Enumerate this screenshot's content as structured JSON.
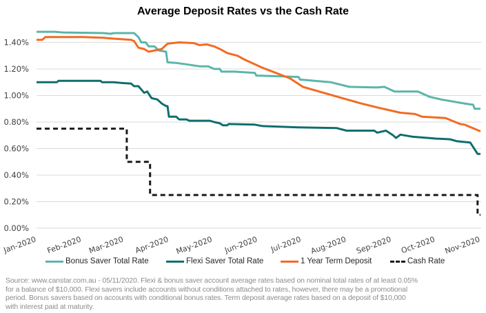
{
  "chart_data": {
    "type": "line",
    "title": "Average Deposit Rates vs the Cash Rate",
    "xlabel": "",
    "ylabel": "",
    "xlim": [
      "2020-01-01",
      "2020-11-01"
    ],
    "ylim": [
      0,
      1.5
    ],
    "y_ticks": [
      0,
      0.2,
      0.4,
      0.6,
      0.8,
      1.0,
      1.2,
      1.4
    ],
    "y_tick_labels": [
      "0.00%",
      "0.20%",
      "0.40%",
      "0.60%",
      "0.80%",
      "1.00%",
      "1.20%",
      "1.40%"
    ],
    "x_tick_dates": [
      "2020-01-01",
      "2020-02-01",
      "2020-03-01",
      "2020-04-01",
      "2020-05-01",
      "2020-06-01",
      "2020-07-01",
      "2020-08-01",
      "2020-09-01",
      "2020-10-01",
      "2020-11-01"
    ],
    "x_tick_labels": [
      "Jan-2020",
      "Feb-2020",
      "Mar-2020",
      "Apr-2020",
      "May-2020",
      "Jun-2020",
      "Jul-2020",
      "Aug-2020",
      "Sep-2020",
      "Oct-2020",
      "Nov-2020"
    ],
    "grid": true,
    "legend_position": "bottom",
    "series": [
      {
        "name": "Bonus Saver Total Rate",
        "color": "#5BB5AA",
        "dash": false,
        "points": [
          [
            "2020-01-01",
            1.48
          ],
          [
            "2020-01-14",
            1.48
          ],
          [
            "2020-01-19",
            1.475
          ],
          [
            "2020-02-16",
            1.47
          ],
          [
            "2020-02-21",
            1.465
          ],
          [
            "2020-02-23",
            1.47
          ],
          [
            "2020-03-08",
            1.47
          ],
          [
            "2020-03-11",
            1.44
          ],
          [
            "2020-03-13",
            1.4
          ],
          [
            "2020-03-16",
            1.4
          ],
          [
            "2020-03-18",
            1.37
          ],
          [
            "2020-03-22",
            1.37
          ],
          [
            "2020-03-25",
            1.34
          ],
          [
            "2020-03-30",
            1.33
          ],
          [
            "2020-03-31",
            1.25
          ],
          [
            "2020-04-06",
            1.245
          ],
          [
            "2020-04-13",
            1.235
          ],
          [
            "2020-04-22",
            1.22
          ],
          [
            "2020-04-28",
            1.22
          ],
          [
            "2020-05-02",
            1.2
          ],
          [
            "2020-05-06",
            1.2
          ],
          [
            "2020-05-07",
            1.18
          ],
          [
            "2020-05-16",
            1.18
          ],
          [
            "2020-05-30",
            1.17
          ],
          [
            "2020-05-31",
            1.15
          ],
          [
            "2020-06-29",
            1.14
          ],
          [
            "2020-06-30",
            1.12
          ],
          [
            "2020-07-21",
            1.1
          ],
          [
            "2020-08-03",
            1.065
          ],
          [
            "2020-08-22",
            1.06
          ],
          [
            "2020-08-27",
            1.065
          ],
          [
            "2020-09-03",
            1.03
          ],
          [
            "2020-09-19",
            1.03
          ],
          [
            "2020-09-27",
            0.99
          ],
          [
            "2020-10-05",
            0.97
          ],
          [
            "2020-10-21",
            0.94
          ],
          [
            "2020-10-27",
            0.93
          ],
          [
            "2020-10-28",
            0.9
          ],
          [
            "2020-11-01",
            0.9
          ]
        ]
      },
      {
        "name": "Flexi Saver Total Rate",
        "color": "#0E6E6E",
        "dash": false,
        "points": [
          [
            "2020-01-01",
            1.1
          ],
          [
            "2020-01-15",
            1.1
          ],
          [
            "2020-01-16",
            1.11
          ],
          [
            "2020-02-14",
            1.11
          ],
          [
            "2020-02-15",
            1.1
          ],
          [
            "2020-02-23",
            1.1
          ],
          [
            "2020-02-28",
            1.095
          ],
          [
            "2020-03-06",
            1.09
          ],
          [
            "2020-03-08",
            1.07
          ],
          [
            "2020-03-11",
            1.07
          ],
          [
            "2020-03-15",
            1.02
          ],
          [
            "2020-03-17",
            1.03
          ],
          [
            "2020-03-20",
            0.98
          ],
          [
            "2020-03-24",
            0.97
          ],
          [
            "2020-03-27",
            0.94
          ],
          [
            "2020-03-30",
            0.92
          ],
          [
            "2020-03-31",
            0.92
          ],
          [
            "2020-04-01",
            0.84
          ],
          [
            "2020-04-06",
            0.84
          ],
          [
            "2020-04-08",
            0.82
          ],
          [
            "2020-04-13",
            0.82
          ],
          [
            "2020-04-15",
            0.81
          ],
          [
            "2020-04-29",
            0.81
          ],
          [
            "2020-05-02",
            0.8
          ],
          [
            "2020-05-06",
            0.79
          ],
          [
            "2020-05-08",
            0.775
          ],
          [
            "2020-05-11",
            0.775
          ],
          [
            "2020-05-12",
            0.785
          ],
          [
            "2020-05-30",
            0.78
          ],
          [
            "2020-06-04",
            0.77
          ],
          [
            "2020-06-29",
            0.76
          ],
          [
            "2020-07-25",
            0.755
          ],
          [
            "2020-08-01",
            0.735
          ],
          [
            "2020-08-20",
            0.735
          ],
          [
            "2020-08-22",
            0.72
          ],
          [
            "2020-08-28",
            0.735
          ],
          [
            "2020-09-02",
            0.7
          ],
          [
            "2020-09-04",
            0.68
          ],
          [
            "2020-09-07",
            0.705
          ],
          [
            "2020-09-15",
            0.69
          ],
          [
            "2020-10-02",
            0.675
          ],
          [
            "2020-10-11",
            0.67
          ],
          [
            "2020-10-16",
            0.655
          ],
          [
            "2020-10-25",
            0.645
          ],
          [
            "2020-10-30",
            0.56
          ],
          [
            "2020-11-01",
            0.56
          ]
        ]
      },
      {
        "name": "1 Year Term Deposit",
        "color": "#F26B21",
        "dash": false,
        "points": [
          [
            "2020-01-01",
            1.42
          ],
          [
            "2020-01-05",
            1.42
          ],
          [
            "2020-01-07",
            1.44
          ],
          [
            "2020-02-02",
            1.44
          ],
          [
            "2020-02-16",
            1.435
          ],
          [
            "2020-02-21",
            1.43
          ],
          [
            "2020-03-06",
            1.42
          ],
          [
            "2020-03-08",
            1.41
          ],
          [
            "2020-03-11",
            1.36
          ],
          [
            "2020-03-15",
            1.35
          ],
          [
            "2020-03-18",
            1.33
          ],
          [
            "2020-03-27",
            1.35
          ],
          [
            "2020-03-31",
            1.39
          ],
          [
            "2020-04-08",
            1.4
          ],
          [
            "2020-04-18",
            1.395
          ],
          [
            "2020-04-22",
            1.38
          ],
          [
            "2020-04-27",
            1.385
          ],
          [
            "2020-05-02",
            1.37
          ],
          [
            "2020-05-06",
            1.35
          ],
          [
            "2020-05-11",
            1.32
          ],
          [
            "2020-05-18",
            1.3
          ],
          [
            "2020-05-23",
            1.27
          ],
          [
            "2020-06-04",
            1.21
          ],
          [
            "2020-06-23",
            1.13
          ],
          [
            "2020-07-02",
            1.065
          ],
          [
            "2020-07-29",
            0.98
          ],
          [
            "2020-08-11",
            0.94
          ],
          [
            "2020-08-22",
            0.91
          ],
          [
            "2020-09-07",
            0.87
          ],
          [
            "2020-09-17",
            0.86
          ],
          [
            "2020-09-22",
            0.84
          ],
          [
            "2020-10-08",
            0.83
          ],
          [
            "2020-10-18",
            0.785
          ],
          [
            "2020-10-21",
            0.78
          ],
          [
            "2020-11-01",
            0.73
          ]
        ]
      },
      {
        "name": "Cash Rate",
        "color": "#1A1A1A",
        "dash": true,
        "points": [
          [
            "2020-01-01",
            0.75
          ],
          [
            "2020-03-03",
            0.75
          ],
          [
            "2020-03-03",
            0.5
          ],
          [
            "2020-03-19",
            0.5
          ],
          [
            "2020-03-19",
            0.25
          ],
          [
            "2020-10-30",
            0.25
          ],
          [
            "2020-10-30",
            0.1
          ],
          [
            "2020-11-01",
            0.1
          ]
        ]
      }
    ]
  },
  "source_note": "Source:  www.canstar.com.au - 05/11/2020. Flexi & bonus saver account average rates based on nominal total rates of at least 0.05% for a balance of $10,000. Flexi savers include accounts without conditions attached to rates, however, there may be a promotional period. Bonus savers based on accounts with conditional bonus rates. Term deposit average rates based on a deposit of $10,000 with interest paid at maturity."
}
